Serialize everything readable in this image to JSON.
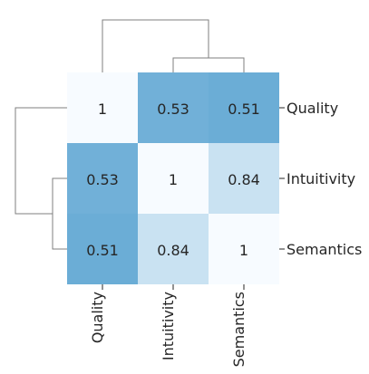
{
  "chart_data": {
    "type": "heatmap",
    "variant": "clustermap",
    "title": "",
    "row_labels": [
      "Quality",
      "Intuitivity",
      "Semantics"
    ],
    "column_labels": [
      "Quality",
      "Intuitivity",
      "Semantics"
    ],
    "values": [
      [
        1,
        0.53,
        0.51
      ],
      [
        0.53,
        1,
        0.84
      ],
      [
        0.51,
        0.84,
        1
      ]
    ],
    "cell_labels": [
      [
        "1",
        "0.53",
        "0.51"
      ],
      [
        "0.53",
        "1",
        "0.84"
      ],
      [
        "0.51",
        "0.84",
        "1"
      ]
    ],
    "row_dendrogram_position": "left",
    "column_dendrogram_position": "top",
    "tick_label_positions": {
      "rows": "right",
      "columns": "bottom"
    },
    "colors": {
      "low": "#6badd6",
      "high": "#f7fbff",
      "text": "#262626",
      "dendrogram": "#7f7f7f",
      "background": "#ffffff"
    },
    "dendrogram": {
      "row_merges": [
        {
          "left": "Intuitivity",
          "right": "Semantics",
          "height_rank": 1
        },
        {
          "left": "Quality",
          "right": "Intuitivity-Semantics",
          "height_rank": 2
        }
      ],
      "column_merges": [
        {
          "left": "Intuitivity",
          "right": "Semantics",
          "height_rank": 1
        },
        {
          "left": "Quality",
          "right": "Intuitivity-Semantics",
          "height_rank": 2
        }
      ]
    }
  }
}
